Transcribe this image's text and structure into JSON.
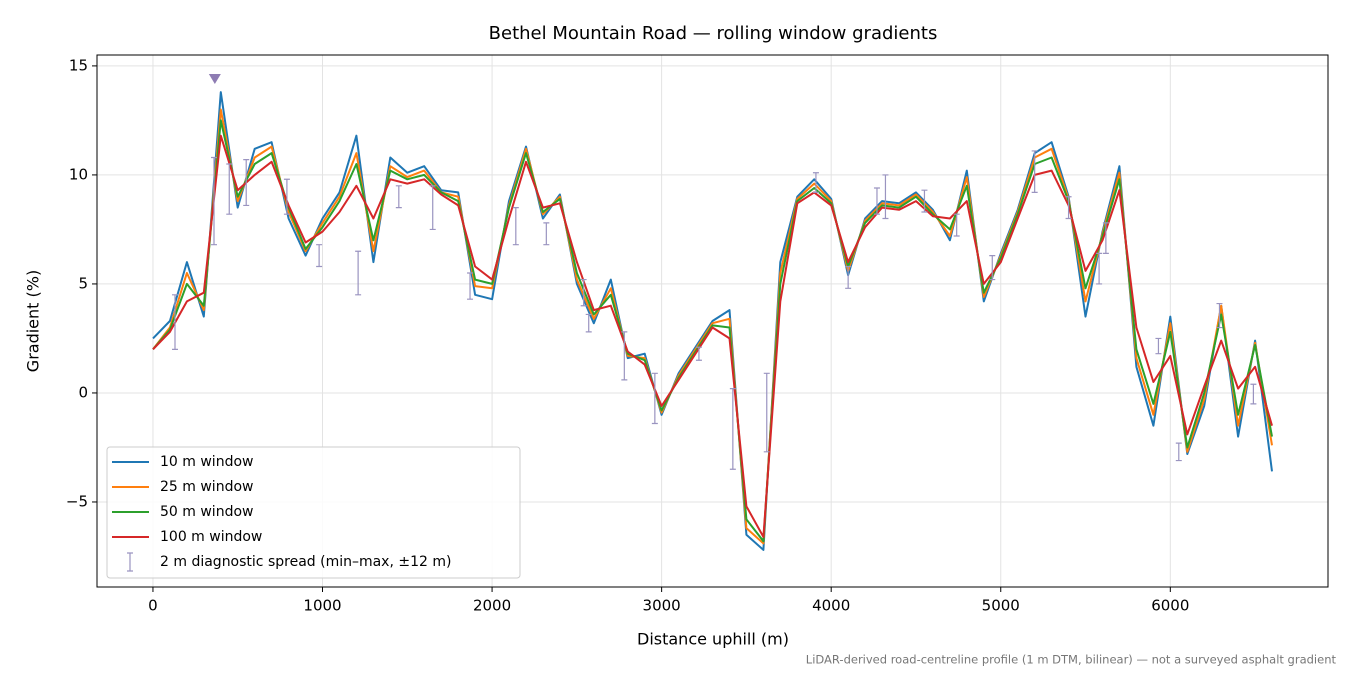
{
  "chart_data": {
    "type": "line",
    "title": "Bethel Mountain Road — rolling window gradients",
    "x_label": "Distance uphill (m)",
    "y_label": "Gradient (%)",
    "note": "LiDAR-derived road-centreline profile (1 m DTM, bilinear) — not a surveyed asphalt gradient",
    "x": [
      0,
      100,
      200,
      300,
      400,
      500,
      600,
      700,
      800,
      900,
      1000,
      1100,
      1200,
      1300,
      1400,
      1500,
      1600,
      1700,
      1800,
      1900,
      2000,
      2100,
      2200,
      2300,
      2400,
      2500,
      2600,
      2700,
      2800,
      2900,
      3000,
      3100,
      3200,
      3300,
      3400,
      3500,
      3600,
      3700,
      3800,
      3900,
      4000,
      4100,
      4200,
      4300,
      4400,
      4500,
      4600,
      4700,
      4800,
      4900,
      5000,
      5100,
      5200,
      5300,
      5400,
      5500,
      5600,
      5700,
      5800,
      5900,
      6000,
      6100,
      6200,
      6300,
      6400,
      6500,
      6600
    ],
    "series": [
      {
        "name": "10 m window",
        "color": "#1f77b4",
        "values": [
          2.5,
          3.3,
          6.0,
          3.5,
          13.8,
          8.5,
          11.2,
          11.5,
          8.0,
          6.3,
          8.0,
          9.2,
          11.8,
          6.0,
          10.8,
          10.1,
          10.4,
          9.3,
          9.2,
          4.5,
          4.3,
          8.8,
          11.3,
          8.0,
          9.1,
          5.0,
          3.2,
          5.2,
          1.6,
          1.8,
          -1.0,
          0.9,
          2.1,
          3.3,
          3.8,
          -6.5,
          -7.2,
          6.0,
          9.0,
          9.8,
          8.9,
          5.4,
          8.0,
          8.8,
          8.7,
          9.2,
          8.4,
          7.0,
          10.2,
          4.2,
          6.4,
          8.4,
          11.0,
          11.5,
          9.0,
          3.5,
          7.4,
          10.4,
          1.2,
          -1.5,
          3.5,
          -2.8,
          -0.6,
          4.0,
          -2.0,
          2.4,
          -3.6
        ]
      },
      {
        "name": "25 m window",
        "color": "#ff7f0e",
        "values": [
          2.0,
          3.0,
          5.5,
          3.8,
          13.0,
          8.8,
          10.8,
          11.3,
          8.3,
          6.5,
          7.8,
          9.0,
          11.0,
          6.5,
          10.4,
          9.9,
          10.2,
          9.2,
          9.0,
          4.9,
          4.8,
          8.6,
          11.2,
          8.2,
          9.0,
          5.2,
          3.4,
          4.8,
          1.7,
          1.6,
          -0.9,
          0.8,
          2.0,
          3.2,
          3.4,
          -6.2,
          -6.9,
          5.5,
          8.9,
          9.6,
          8.8,
          5.6,
          7.9,
          8.7,
          8.6,
          9.1,
          8.3,
          7.2,
          9.9,
          4.4,
          6.3,
          8.3,
          10.8,
          11.2,
          8.9,
          4.2,
          7.3,
          10.1,
          1.6,
          -1.0,
          3.2,
          -2.7,
          -0.3,
          4.0,
          -1.5,
          2.3,
          -2.4
        ]
      },
      {
        "name": "50 m window",
        "color": "#2ca02c",
        "values": [
          2.0,
          2.9,
          5.0,
          4.0,
          12.5,
          9.0,
          10.5,
          11.0,
          8.5,
          6.6,
          7.6,
          8.8,
          10.5,
          7.0,
          10.2,
          9.8,
          10.0,
          9.2,
          8.8,
          5.2,
          5.0,
          8.5,
          11.0,
          8.3,
          8.9,
          5.5,
          3.6,
          4.5,
          1.8,
          1.5,
          -0.8,
          0.7,
          1.9,
          3.1,
          3.0,
          -5.8,
          -6.8,
          5.0,
          8.8,
          9.4,
          8.7,
          5.8,
          7.8,
          8.6,
          8.5,
          9.0,
          8.2,
          7.5,
          9.5,
          4.6,
          6.2,
          8.2,
          10.5,
          10.8,
          8.8,
          4.8,
          7.2,
          9.8,
          2.0,
          -0.5,
          2.8,
          -2.5,
          0.0,
          3.6,
          -1.0,
          2.2,
          -2.0
        ]
      },
      {
        "name": "100 m window",
        "color": "#d62728",
        "values": [
          2.0,
          2.8,
          4.2,
          4.6,
          11.8,
          9.3,
          10.0,
          10.6,
          8.6,
          6.9,
          7.4,
          8.3,
          9.5,
          8.0,
          9.8,
          9.6,
          9.8,
          9.1,
          8.6,
          5.8,
          5.2,
          8.0,
          10.6,
          8.5,
          8.7,
          6.0,
          3.8,
          4.0,
          1.9,
          1.3,
          -0.6,
          0.6,
          1.8,
          3.0,
          2.5,
          -5.2,
          -6.6,
          4.2,
          8.7,
          9.2,
          8.6,
          6.0,
          7.6,
          8.5,
          8.4,
          8.8,
          8.1,
          8.0,
          8.8,
          5.0,
          6.0,
          8.0,
          10.0,
          10.2,
          8.6,
          5.6,
          7.0,
          9.3,
          3.0,
          0.5,
          1.7,
          -1.9,
          0.3,
          2.4,
          0.2,
          1.2,
          -1.5
        ]
      }
    ],
    "errorbars": {
      "name": "2 m diagnostic spread (min–max, ±12 m)",
      "color": "#9a94c0",
      "x": [
        130,
        360,
        450,
        550,
        790,
        980,
        1210,
        1450,
        1650,
        1870,
        2140,
        2320,
        2540,
        2570,
        2780,
        2960,
        3220,
        3420,
        3620,
        3910,
        4100,
        4270,
        4320,
        4550,
        4740,
        4950,
        5200,
        5400,
        5580,
        5620,
        5930,
        6050,
        6290,
        6490
      ],
      "low": [
        2.0,
        6.8,
        8.2,
        8.6,
        8.2,
        5.8,
        4.5,
        8.5,
        7.5,
        4.3,
        6.8,
        6.8,
        4.0,
        2.8,
        0.6,
        -1.4,
        1.5,
        -3.5,
        -2.7,
        9.2,
        4.8,
        8.2,
        8.0,
        8.3,
        7.2,
        5.2,
        9.2,
        8.0,
        5.0,
        6.4,
        1.8,
        -3.1,
        3.0,
        -0.5
      ],
      "high": [
        4.5,
        10.8,
        10.5,
        10.7,
        9.8,
        6.8,
        6.5,
        9.5,
        9.5,
        5.5,
        8.5,
        7.8,
        5.2,
        3.6,
        2.8,
        0.9,
        2.1,
        0.2,
        0.9,
        10.1,
        5.8,
        9.4,
        10.0,
        9.3,
        8.2,
        6.3,
        11.1,
        9.0,
        6.4,
        7.8,
        2.5,
        -2.3,
        4.1,
        0.4
      ]
    },
    "peak_marker": {
      "x": 365,
      "y": 14.4,
      "color": "#8e7cb3"
    },
    "xlim": [
      -330,
      6930
    ],
    "ylim": [
      -8.9,
      15.5
    ],
    "xticks": [
      0,
      1000,
      2000,
      3000,
      4000,
      5000,
      6000
    ],
    "yticks": [
      {
        "value": -5,
        "label": "−5"
      },
      0,
      5,
      10,
      15
    ],
    "grid": true,
    "legend": "lower left"
  }
}
